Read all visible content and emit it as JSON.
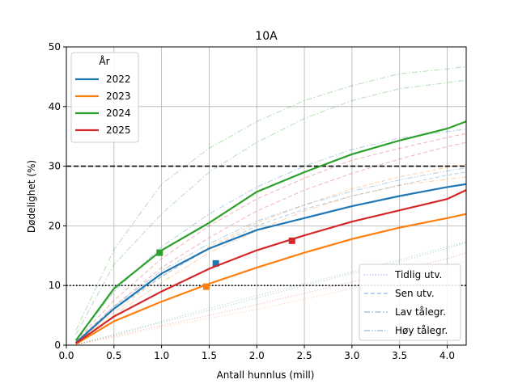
{
  "chart_data": {
    "type": "line",
    "title": "10A",
    "xlabel": "Antall hunnlus (mill)",
    "ylabel": "Dødelighet (%)",
    "xlim": [
      0,
      4.2
    ],
    "ylim": [
      0,
      50
    ],
    "xticks": [
      "0.0",
      "0.5",
      "1.0",
      "1.5",
      "2.0",
      "2.5",
      "3.0",
      "3.5",
      "4.0"
    ],
    "xtick_values": [
      0,
      0.5,
      1.0,
      1.5,
      2.0,
      2.5,
      3.0,
      3.5,
      4.0
    ],
    "yticks": [
      "0",
      "10",
      "20",
      "30",
      "40",
      "50"
    ],
    "ytick_values": [
      0,
      10,
      20,
      30,
      40,
      50
    ],
    "grid": true,
    "reference_lines": [
      {
        "y": 30,
        "style": "dashed",
        "color": "#000000"
      },
      {
        "y": 10,
        "style": "dotted",
        "color": "#000000"
      }
    ],
    "legend_years": {
      "title": "År",
      "placement": "upper-left",
      "entries": [
        {
          "label": "2022",
          "color": "#1f77b4"
        },
        {
          "label": "2023",
          "color": "#ff7f0e"
        },
        {
          "label": "2024",
          "color": "#2ca02c"
        },
        {
          "label": "2025",
          "color": "#d62728"
        }
      ]
    },
    "legend_scenarios": {
      "placement": "lower-right",
      "entries": [
        {
          "label": "Tidlig utv.",
          "style": "dotted"
        },
        {
          "label": "Sen utv.",
          "style": "dashed"
        },
        {
          "label": "Lav tålegr.",
          "style": "dashdot"
        },
        {
          "label": "Høy tålegr.",
          "style": "dashdotdot"
        }
      ]
    },
    "x": [
      0.1,
      0.5,
      1.0,
      1.5,
      2.0,
      2.5,
      3.0,
      3.5,
      4.0,
      4.2
    ],
    "series": [
      {
        "name": "2022",
        "color": "#1f77b4",
        "values": [
          0.4,
          6.1,
          12.0,
          16.2,
          19.3,
          21.3,
          23.3,
          25.0,
          26.5,
          27.0
        ],
        "marker": {
          "x": 1.57,
          "y": 13.7
        }
      },
      {
        "name": "2023",
        "color": "#ff7f0e",
        "values": [
          0.2,
          4.0,
          7.3,
          10.3,
          13.0,
          15.5,
          17.8,
          19.7,
          21.3,
          22.0
        ],
        "marker": {
          "x": 1.47,
          "y": 9.8
        }
      },
      {
        "name": "2024",
        "color": "#2ca02c",
        "values": [
          0.8,
          9.5,
          15.9,
          20.5,
          25.7,
          29.0,
          32.0,
          34.3,
          36.3,
          37.5
        ],
        "marker": {
          "x": 0.98,
          "y": 15.5
        }
      },
      {
        "name": "2025",
        "color": "#d62728",
        "values": [
          0.3,
          4.8,
          9.0,
          12.8,
          15.9,
          18.4,
          20.7,
          22.6,
          24.5,
          26.0
        ],
        "marker": {
          "x": 2.37,
          "y": 17.5
        }
      }
    ],
    "scenario_series": [
      {
        "year": "2024",
        "color": "#2ca02c",
        "style": "dashdot",
        "values": [
          2.5,
          16.0,
          27.0,
          33.0,
          37.5,
          41.0,
          43.5,
          45.5,
          46.3,
          46.7
        ]
      },
      {
        "year": "2024",
        "color": "#2ca02c",
        "style": "dashdot",
        "values": [
          1.8,
          13.5,
          22.0,
          29.0,
          34.0,
          38.0,
          41.0,
          43.0,
          44.0,
          44.4
        ]
      },
      {
        "year": "2022",
        "color": "#1f77b4",
        "style": "dashdot",
        "values": [
          0.9,
          9.0,
          16.5,
          22.0,
          26.5,
          30.0,
          32.8,
          34.7,
          35.8,
          36.2
        ]
      },
      {
        "year": "2025",
        "color": "#d62728",
        "style": "dashed",
        "values": [
          0.7,
          7.5,
          14.5,
          20.0,
          24.5,
          28.0,
          31.0,
          33.0,
          34.8,
          35.5
        ]
      },
      {
        "year": "2025",
        "color": "#d62728",
        "style": "dashed",
        "values": [
          0.5,
          6.5,
          13.0,
          18.0,
          22.5,
          26.0,
          28.8,
          31.2,
          33.3,
          34.0
        ]
      },
      {
        "year": "2023",
        "color": "#ff7f0e",
        "style": "dashed",
        "values": [
          0.4,
          5.5,
          11.5,
          16.5,
          20.5,
          23.5,
          26.2,
          28.2,
          29.8,
          30.3
        ]
      },
      {
        "year": "2022",
        "color": "#1f77b4",
        "style": "dashdotdot",
        "values": [
          0.6,
          6.5,
          12.5,
          17.0,
          20.8,
          23.5,
          25.8,
          27.7,
          29.2,
          29.7
        ]
      },
      {
        "year": "2022",
        "color": "#1f77b4",
        "style": "dashed",
        "values": [
          0.5,
          6.0,
          11.5,
          16.2,
          20.0,
          22.8,
          25.0,
          26.8,
          28.5,
          29.0
        ]
      },
      {
        "year": "2023",
        "color": "#ff7f0e",
        "style": "dashdot",
        "values": [
          0.4,
          5.0,
          10.5,
          15.5,
          19.2,
          22.5,
          25.0,
          26.8,
          27.8,
          28.2
        ]
      },
      {
        "year": "2024",
        "color": "#2ca02c",
        "style": "dotted",
        "values": [
          0.1,
          1.8,
          4.0,
          6.2,
          8.3,
          10.3,
          12.3,
          14.3,
          16.5,
          17.3
        ]
      },
      {
        "year": "2022",
        "color": "#1f77b4",
        "style": "dotted",
        "values": [
          0.1,
          1.7,
          3.8,
          5.8,
          7.9,
          10.0,
          12.0,
          14.0,
          16.2,
          17.2
        ]
      },
      {
        "year": "2025",
        "color": "#d62728",
        "style": "dotted",
        "values": [
          0.1,
          1.5,
          3.3,
          5.0,
          6.8,
          8.7,
          10.6,
          12.6,
          14.5,
          15.5
        ]
      },
      {
        "year": "2023",
        "color": "#ff7f0e",
        "style": "dotted",
        "values": [
          0.1,
          1.3,
          3.0,
          4.5,
          6.0,
          7.7,
          9.5,
          11.4,
          13.3,
          14.0
        ]
      }
    ]
  }
}
